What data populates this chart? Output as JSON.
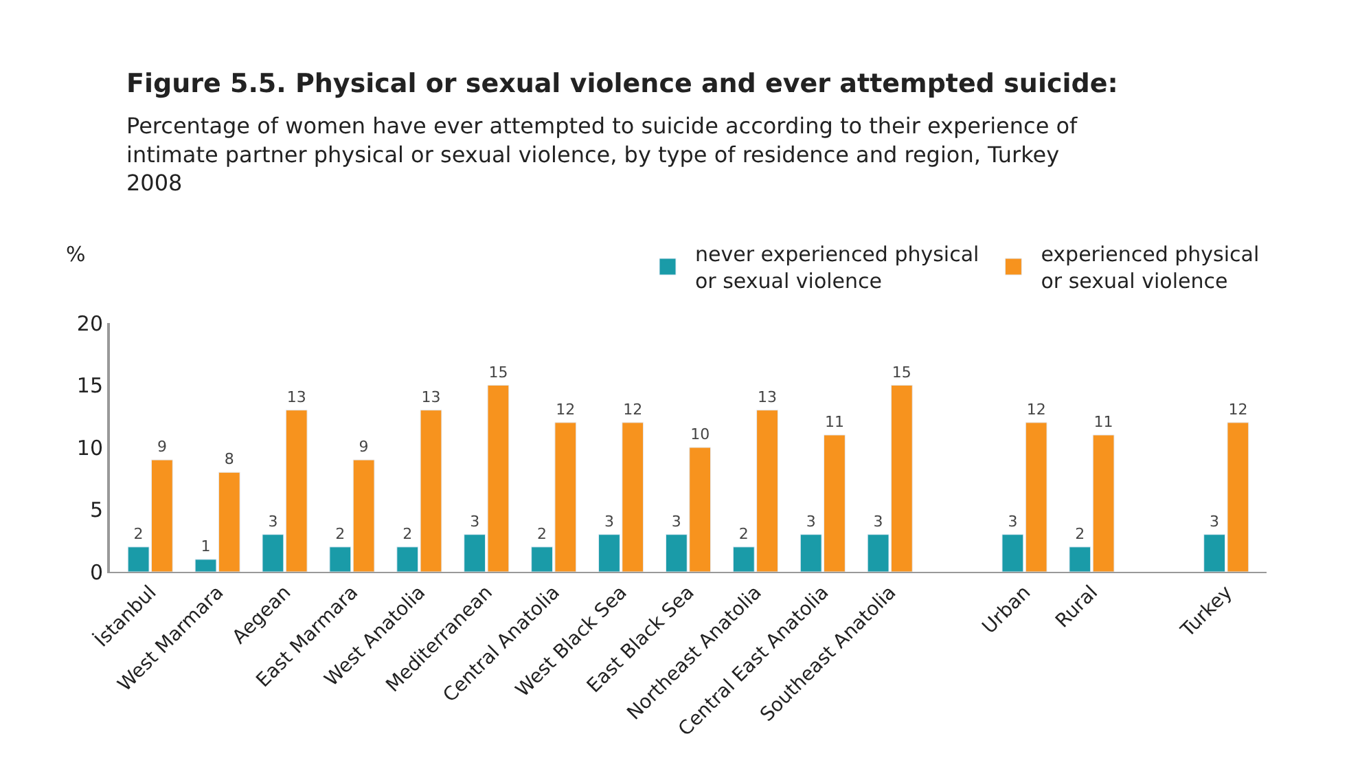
{
  "chart_data": {
    "type": "bar",
    "title": "Figure 5.5. Physical or sexual violence and ever attempted suicide:",
    "subtitle": "Percentage of women have ever attempted to suicide according to their experience of intimate partner physical or sexual violence, by type of residence and region, Turkey 2008",
    "ylabel": "%",
    "categories": [
      "İstanbul",
      "West Marmara",
      "Aegean",
      "East Marmara",
      "West Anatolia",
      "Mediterranean",
      "Central Anatolia",
      "West Black Sea",
      "East Black Sea",
      "Northeast Anatolia",
      "Central East Anatolia",
      "Southeast Anatolia",
      null,
      "Urban",
      "Rural",
      null,
      "Turkey"
    ],
    "series": [
      {
        "name": "never experienced physical\nor sexual violence",
        "color": "#1a9ba8",
        "values": [
          2,
          1,
          3,
          2,
          2,
          3,
          2,
          3,
          3,
          2,
          3,
          3,
          null,
          3,
          2,
          null,
          3
        ]
      },
      {
        "name": "experienced physical\nor sexual violence",
        "color": "#f7931e",
        "values": [
          9,
          8,
          13,
          9,
          13,
          15,
          12,
          12,
          10,
          13,
          11,
          15,
          null,
          12,
          11,
          null,
          12
        ]
      }
    ],
    "ylim": [
      0,
      20
    ],
    "yticks": [
      0,
      5,
      10,
      15,
      20
    ],
    "data_labels": true,
    "legend": "top right"
  }
}
